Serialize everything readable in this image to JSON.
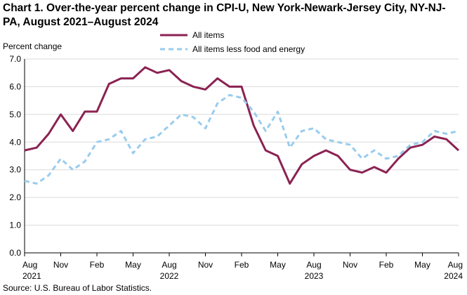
{
  "title": "Chart 1. Over-the-year percent change in CPI-U, New York-Newark-Jersey City, NY-NJ-PA, August 2021–August 2024",
  "source": "Source: U.S. Bureau of Labor Statistics.",
  "colors": {
    "all_items": "#8b2252",
    "core": "#99ccee",
    "grid": "#d9d9d9",
    "axis": "#000000"
  },
  "chart_data": {
    "type": "line",
    "ylabel": "Percent change",
    "ylim": [
      0,
      7
    ],
    "yticks": [
      "0.0",
      "1.0",
      "2.0",
      "3.0",
      "4.0",
      "5.0",
      "6.0",
      "7.0"
    ],
    "grid": true,
    "legend_position": "top",
    "x": [
      "Aug 2021",
      "Sep 2021",
      "Oct 2021",
      "Nov 2021",
      "Dec 2021",
      "Jan 2022",
      "Feb 2022",
      "Mar 2022",
      "Apr 2022",
      "May 2022",
      "Jun 2022",
      "Jul 2022",
      "Aug 2022",
      "Sep 2022",
      "Oct 2022",
      "Nov 2022",
      "Dec 2022",
      "Jan 2023",
      "Feb 2023",
      "Mar 2023",
      "Apr 2023",
      "May 2023",
      "Jun 2023",
      "Jul 2023",
      "Aug 2023",
      "Sep 2023",
      "Oct 2023",
      "Nov 2023",
      "Dec 2023",
      "Jan 2024",
      "Feb 2024",
      "Mar 2024",
      "Apr 2024",
      "May 2024",
      "Jun 2024",
      "Jul 2024",
      "Aug 2024"
    ],
    "xticks": [
      {
        "index": 0,
        "line1": "Aug",
        "line2": "2021"
      },
      {
        "index": 3,
        "line1": "Nov",
        "line2": ""
      },
      {
        "index": 6,
        "line1": "Feb",
        "line2": ""
      },
      {
        "index": 9,
        "line1": "May",
        "line2": ""
      },
      {
        "index": 12,
        "line1": "Aug",
        "line2": "2022"
      },
      {
        "index": 15,
        "line1": "Nov",
        "line2": ""
      },
      {
        "index": 18,
        "line1": "Feb",
        "line2": ""
      },
      {
        "index": 21,
        "line1": "May",
        "line2": ""
      },
      {
        "index": 24,
        "line1": "Aug",
        "line2": "2023"
      },
      {
        "index": 27,
        "line1": "Nov",
        "line2": ""
      },
      {
        "index": 30,
        "line1": "Feb",
        "line2": ""
      },
      {
        "index": 33,
        "line1": "May",
        "line2": ""
      },
      {
        "index": 36,
        "line1": "Aug",
        "line2": "2024"
      }
    ],
    "series": [
      {
        "name": "All items",
        "style": "solid",
        "values": [
          3.7,
          3.8,
          4.3,
          5.0,
          4.4,
          5.1,
          5.1,
          6.1,
          6.3,
          6.3,
          6.7,
          6.5,
          6.6,
          6.2,
          6.0,
          5.9,
          6.3,
          6.0,
          6.0,
          4.6,
          3.7,
          3.5,
          2.5,
          3.2,
          3.5,
          3.7,
          3.5,
          3.0,
          2.9,
          3.1,
          2.9,
          3.4,
          3.8,
          3.9,
          4.2,
          4.1,
          3.7
        ]
      },
      {
        "name": "All items less food and energy",
        "style": "dashed",
        "values": [
          2.6,
          2.5,
          2.8,
          3.4,
          3.0,
          3.3,
          4.0,
          4.1,
          4.4,
          3.6,
          4.1,
          4.2,
          4.6,
          5.0,
          4.9,
          4.5,
          5.4,
          5.7,
          5.6,
          5.1,
          4.4,
          5.1,
          3.8,
          4.4,
          4.5,
          4.1,
          4.0,
          3.9,
          3.4,
          3.7,
          3.4,
          3.5,
          3.9,
          4.0,
          4.4,
          4.3,
          4.4
        ]
      }
    ]
  }
}
